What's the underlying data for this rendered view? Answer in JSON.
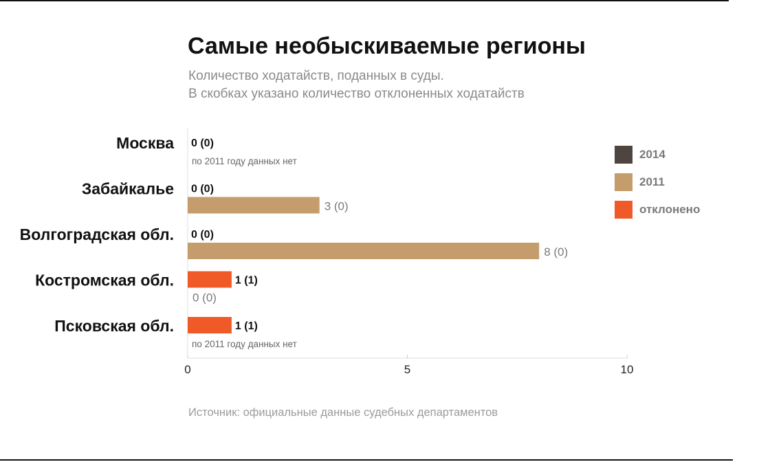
{
  "title": "Самые необыскиваемые регионы",
  "subtitle_line1": "Количество ходатайств, поданных в суды.",
  "subtitle_line2": "В скобках указано количество отклоненных ходатайств",
  "source": "Источник: официальные данные судебных департаментов",
  "colors": {
    "2014": "#4f4540",
    "2011": "#c59d6c",
    "rejected": "#f05a28"
  },
  "legend": [
    {
      "label": "2014",
      "color": "#4f4540"
    },
    {
      "label": "2011",
      "color": "#c59d6c"
    },
    {
      "label": "отклонено",
      "color": "#f05a28"
    }
  ],
  "chart_data": {
    "type": "bar",
    "orientation": "horizontal",
    "categories": [
      "Москва",
      "Забайкалье",
      "Волгоградская обл.",
      "Костромская обл.",
      "Псковская обл."
    ],
    "series": [
      {
        "name": "2014",
        "values": [
          0,
          0,
          0,
          1,
          1
        ],
        "rejected": [
          0,
          0,
          0,
          1,
          1
        ],
        "labels": [
          "0 (0)",
          "0 (0)",
          "0 (0)",
          "1 (1)",
          "1 (1)"
        ]
      },
      {
        "name": "2011",
        "values": [
          null,
          3,
          8,
          0,
          null
        ],
        "rejected": [
          null,
          0,
          0,
          0,
          null
        ],
        "labels": [
          "по 2011 году данных нет",
          "3 (0)",
          "8 (0)",
          "0 (0)",
          "по 2011 году данных нет"
        ]
      }
    ],
    "x_ticks": [
      "0",
      "5",
      "10"
    ],
    "xlim": [
      0,
      10
    ],
    "grid": false,
    "legend_position": "right"
  }
}
